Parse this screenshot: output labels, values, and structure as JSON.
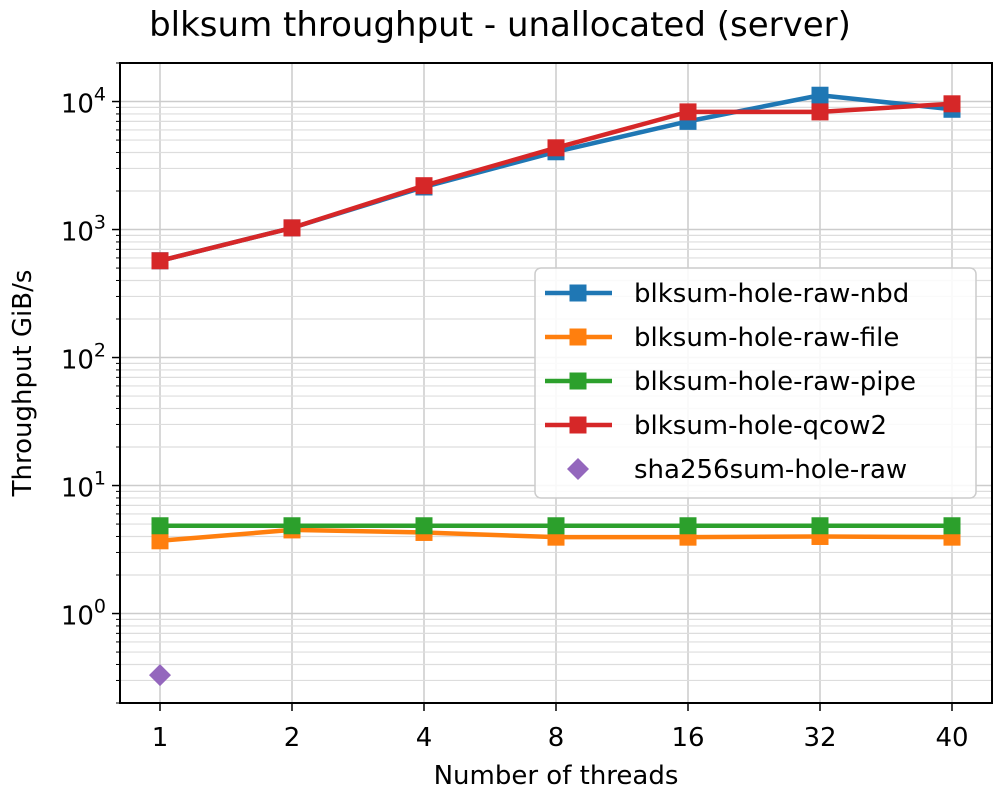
{
  "chart_data": {
    "type": "line",
    "title": "blksum throughput - unallocated (server)",
    "xlabel": "Number of threads",
    "ylabel": "Throughput GiB/s",
    "yscale": "log",
    "ylim": [
      0.2,
      20000
    ],
    "categories": [
      "1",
      "2",
      "4",
      "8",
      "16",
      "32",
      "40"
    ],
    "y_ticks": [
      {
        "base": "10",
        "exp": "0",
        "value": 1
      },
      {
        "base": "10",
        "exp": "1",
        "value": 10
      },
      {
        "base": "10",
        "exp": "2",
        "value": 100
      },
      {
        "base": "10",
        "exp": "3",
        "value": 1000
      },
      {
        "base": "10",
        "exp": "4",
        "value": 10000
      }
    ],
    "grid": true,
    "legend_position": "center-right",
    "series": [
      {
        "name": "blksum-hole-raw-nbd",
        "color": "#1f77b4",
        "marker": "square",
        "values": [
          570,
          1030,
          2150,
          4050,
          7000,
          11200,
          8700
        ]
      },
      {
        "name": "blksum-hole-raw-file",
        "color": "#ff7f0e",
        "marker": "square",
        "values": [
          3.7,
          4.5,
          4.3,
          3.95,
          3.95,
          4.0,
          3.95
        ]
      },
      {
        "name": "blksum-hole-raw-pipe",
        "color": "#2ca02c",
        "marker": "square",
        "values": [
          4.85,
          4.85,
          4.85,
          4.85,
          4.85,
          4.85,
          4.85
        ]
      },
      {
        "name": "blksum-hole-qcow2",
        "color": "#d62728",
        "marker": "square",
        "values": [
          570,
          1030,
          2200,
          4350,
          8300,
          8300,
          9600
        ]
      },
      {
        "name": "sha256sum-hole-raw",
        "color": "#9467bd",
        "marker": "diamond",
        "line": false,
        "values": [
          0.33,
          null,
          null,
          null,
          null,
          null,
          null
        ]
      }
    ]
  }
}
